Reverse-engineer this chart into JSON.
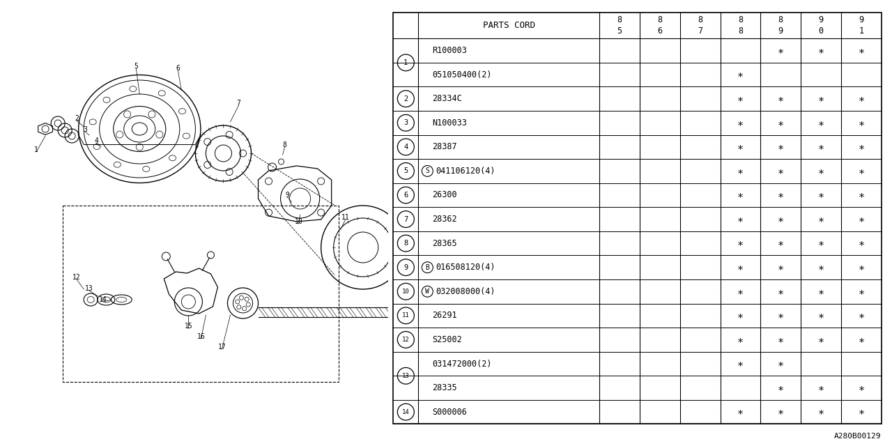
{
  "rows": [
    {
      "ref": "1",
      "part": "R100003",
      "prefix": "",
      "cols": [
        0,
        0,
        0,
        0,
        1,
        1,
        1
      ],
      "row_span": 2
    },
    {
      "ref": "",
      "part": "051050400(2)",
      "prefix": "",
      "cols": [
        0,
        0,
        0,
        1,
        0,
        0,
        0
      ],
      "row_span": 0
    },
    {
      "ref": "2",
      "part": "28334C",
      "prefix": "",
      "cols": [
        0,
        0,
        0,
        1,
        1,
        1,
        1
      ],
      "row_span": 1
    },
    {
      "ref": "3",
      "part": "N100033",
      "prefix": "",
      "cols": [
        0,
        0,
        0,
        1,
        1,
        1,
        1
      ],
      "row_span": 1
    },
    {
      "ref": "4",
      "part": "28387",
      "prefix": "",
      "cols": [
        0,
        0,
        0,
        1,
        1,
        1,
        1
      ],
      "row_span": 1
    },
    {
      "ref": "5",
      "part": "041106120(4)",
      "prefix": "S",
      "cols": [
        0,
        0,
        0,
        1,
        1,
        1,
        1
      ],
      "row_span": 1
    },
    {
      "ref": "6",
      "part": "26300",
      "prefix": "",
      "cols": [
        0,
        0,
        0,
        1,
        1,
        1,
        1
      ],
      "row_span": 1
    },
    {
      "ref": "7",
      "part": "28362",
      "prefix": "",
      "cols": [
        0,
        0,
        0,
        1,
        1,
        1,
        1
      ],
      "row_span": 1
    },
    {
      "ref": "8",
      "part": "28365",
      "prefix": "",
      "cols": [
        0,
        0,
        0,
        1,
        1,
        1,
        1
      ],
      "row_span": 1
    },
    {
      "ref": "9",
      "part": "016508120(4)",
      "prefix": "B",
      "cols": [
        0,
        0,
        0,
        1,
        1,
        1,
        1
      ],
      "row_span": 1
    },
    {
      "ref": "10",
      "part": "032008000(4)",
      "prefix": "W",
      "cols": [
        0,
        0,
        0,
        1,
        1,
        1,
        1
      ],
      "row_span": 1
    },
    {
      "ref": "11",
      "part": "26291",
      "prefix": "",
      "cols": [
        0,
        0,
        0,
        1,
        1,
        1,
        1
      ],
      "row_span": 1
    },
    {
      "ref": "12",
      "part": "S25002",
      "prefix": "",
      "cols": [
        0,
        0,
        0,
        1,
        1,
        1,
        1
      ],
      "row_span": 1
    },
    {
      "ref": "13",
      "part": "031472000(2)",
      "prefix": "",
      "cols": [
        0,
        0,
        0,
        1,
        1,
        0,
        0
      ],
      "row_span": 2
    },
    {
      "ref": "",
      "part": "28335",
      "prefix": "",
      "cols": [
        0,
        0,
        0,
        0,
        1,
        1,
        1
      ],
      "row_span": 0
    },
    {
      "ref": "14",
      "part": "S000006",
      "prefix": "",
      "cols": [
        0,
        0,
        0,
        1,
        1,
        1,
        1
      ],
      "row_span": 1
    }
  ],
  "year_top": [
    "8",
    "8",
    "8",
    "8",
    "8",
    "9",
    "9"
  ],
  "year_bot": [
    "5",
    "6",
    "7",
    "8",
    "9",
    "0",
    "1"
  ],
  "bg_color": "#ffffff",
  "lc": "#000000",
  "code_ref": "A280B00129",
  "asterisk": "∗"
}
